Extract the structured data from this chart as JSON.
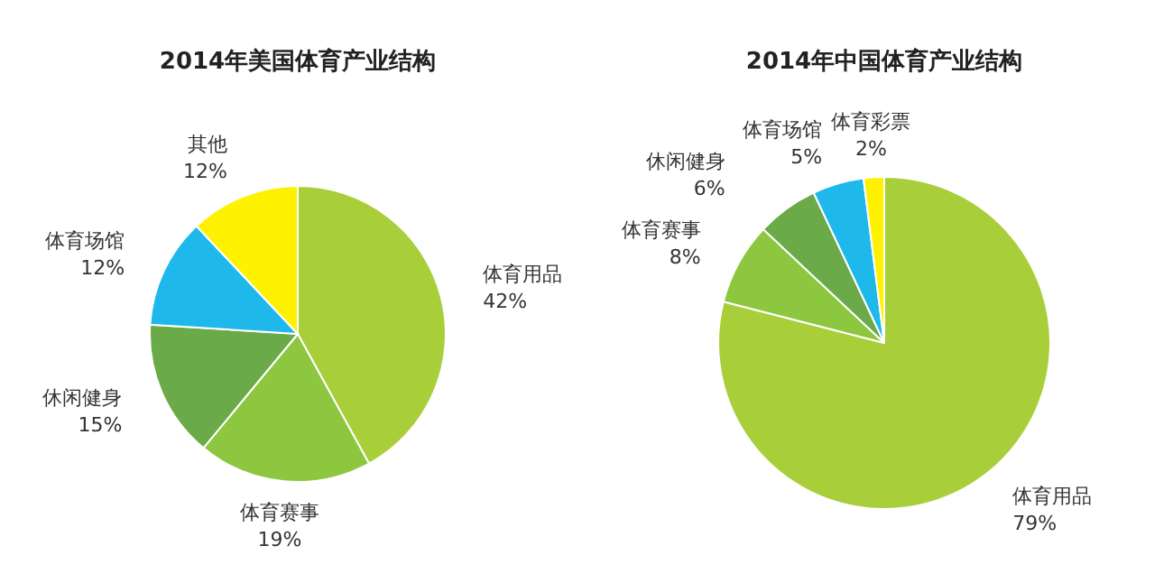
{
  "chart_data": [
    {
      "type": "pie",
      "title": "2014年美国体育产业结构",
      "categories": [
        "体育用品",
        "体育赛事",
        "休闲健身",
        "体育场馆",
        "其他"
      ],
      "values": [
        42,
        19,
        15,
        12,
        12
      ],
      "colors": [
        "#a8cf3a",
        "#8dc63f",
        "#6aaa48",
        "#1fb8ea",
        "#fff200"
      ],
      "value_labels": [
        "42%",
        "19%",
        "15%",
        "12%",
        "12%"
      ]
    },
    {
      "type": "pie",
      "title": "2014年中国体育产业结构",
      "categories": [
        "体育用品",
        "体育赛事",
        "休闲健身",
        "体育场馆",
        "体育彩票"
      ],
      "values": [
        79,
        8,
        6,
        5,
        2
      ],
      "colors": [
        "#a8cf3a",
        "#8dc63f",
        "#6aaa48",
        "#1fb8ea",
        "#fff200"
      ],
      "value_labels": [
        "79%",
        "8%",
        "6%",
        "5%",
        "2%"
      ]
    }
  ]
}
